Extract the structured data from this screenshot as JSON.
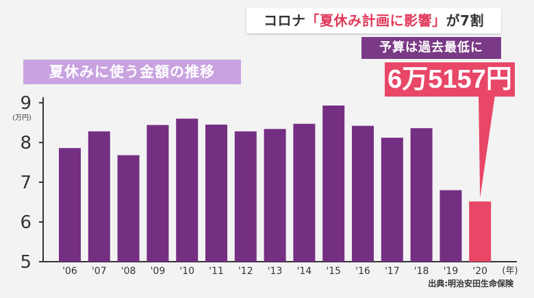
{
  "headline": {
    "prefix": "コロナ",
    "quote": "「夏休み計画に影響」",
    "suffix": "が7割"
  },
  "sub_caption": "予算は過去最低に",
  "value_callout": "6万5157円",
  "source": "出典:明治安田生命保険",
  "colors": {
    "bar": "#742f82",
    "highlight": "#e84767",
    "accent": "#e0395a"
  },
  "chart_data": {
    "type": "bar",
    "title": "夏休みに使う金額の推移",
    "ylabel": "(万円)",
    "xlabel": "(年)",
    "ylim": [
      5,
      9
    ],
    "yticks": [
      5,
      6,
      7,
      8,
      9
    ],
    "grid": false,
    "highlight_index": 14,
    "categories": [
      "'06",
      "'07",
      "'08",
      "'09",
      "'10",
      "'11",
      "'12",
      "'13",
      "'14",
      "'15",
      "'16",
      "'17",
      "'18",
      "'19",
      "'20"
    ],
    "values": [
      7.86,
      8.28,
      7.68,
      8.44,
      8.6,
      8.45,
      8.28,
      8.34,
      8.47,
      8.93,
      8.42,
      8.12,
      8.36,
      6.8,
      6.5157
    ]
  }
}
